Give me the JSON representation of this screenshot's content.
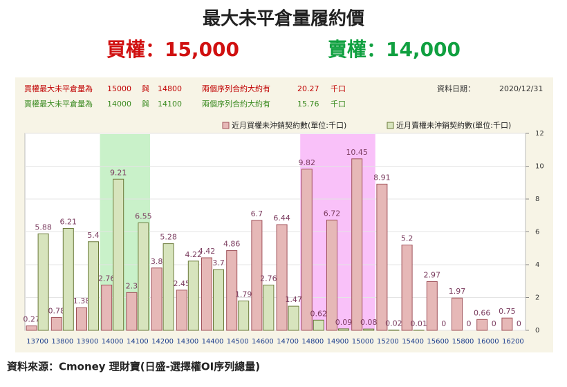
{
  "header": {
    "title": "最大未平倉量履約價",
    "call": "買權：15,000",
    "put": "賣權：14,000"
  },
  "info": {
    "rows": [
      [
        "買權最大未平倉量為",
        "15000",
        "與",
        "14800",
        "兩個序列合約大約有",
        "20.27",
        "千口"
      ],
      [
        "賣權最大未平倉量為",
        "14000",
        "與",
        "14100",
        "兩個序列合約大約有",
        "15.76",
        "千口"
      ]
    ],
    "date_label": "資料日期：",
    "date": "2020/12/31"
  },
  "chart_data": {
    "type": "bar",
    "categories": [
      "13700",
      "13800",
      "13900",
      "14000",
      "14100",
      "14200",
      "14300",
      "14400",
      "14500",
      "14600",
      "14700",
      "14800",
      "14900",
      "15000",
      "15200",
      "15400",
      "15600",
      "15800",
      "16000",
      "16200"
    ],
    "series": [
      {
        "name": "近月買權未沖銷契約數(單位:千口)",
        "color": "#e6b8b7",
        "stroke": "#a0525a",
        "values": [
          0.27,
          0.78,
          1.38,
          2.76,
          2.3,
          3.8,
          2.45,
          4.42,
          4.86,
          6.7,
          6.44,
          9.82,
          6.72,
          10.45,
          8.91,
          5.2,
          2.97,
          1.97,
          0.66,
          0.75
        ]
      },
      {
        "name": "近月賣權未沖銷契約數(單位:千口)",
        "color": "#d7e4bd",
        "stroke": "#6b7a3a",
        "values": [
          5.88,
          6.21,
          5.4,
          9.21,
          6.55,
          5.28,
          4.22,
          3.7,
          1.79,
          2.76,
          1.47,
          0.62,
          0.09,
          0.08,
          0.02,
          0.01,
          0,
          0,
          0,
          0
        ]
      }
    ],
    "highlights": [
      {
        "categories": [
          "14000",
          "14100"
        ],
        "color": "#c9f1c9"
      },
      {
        "categories": [
          "14800",
          "14900",
          "15000"
        ],
        "color": "#f9c1f9"
      }
    ],
    "ylim": [
      0,
      12
    ],
    "yticks": [
      0,
      2,
      4,
      6,
      8,
      10,
      12
    ],
    "y_axis_side": "right",
    "grid": true
  },
  "footer": "資料來源：Cmoney 理財寶(日盛-選擇權OI序列總量)"
}
